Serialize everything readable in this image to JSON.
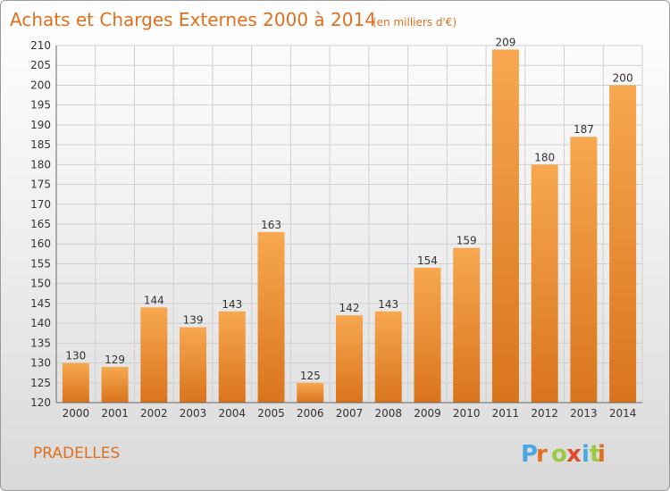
{
  "header": {
    "title": "Achats et Charges Externes 2000 à 2014",
    "subtitle": "(en milliers d'€)"
  },
  "footer": {
    "place": "PRADELLES",
    "brand_letters": [
      "P",
      "r",
      "o",
      "x",
      "i",
      "t",
      "i"
    ]
  },
  "colors": {
    "bar": "#f08a2c",
    "title": "#e0701e",
    "brand": [
      "#4aa7e0",
      "#e0701e",
      "#9bc93f",
      "#e24a2c",
      "#4aa7e0",
      "#9bc93f",
      "#e0701e"
    ]
  },
  "chart_data": {
    "type": "bar",
    "categories": [
      "2000",
      "2001",
      "2002",
      "2003",
      "2004",
      "2005",
      "2006",
      "2007",
      "2008",
      "2009",
      "2010",
      "2011",
      "2012",
      "2013",
      "2014"
    ],
    "values": [
      130,
      129,
      144,
      139,
      143,
      163,
      125,
      142,
      143,
      154,
      159,
      209,
      180,
      187,
      200
    ],
    "ylim": [
      120,
      210
    ],
    "yticks": [
      120,
      125,
      130,
      135,
      140,
      145,
      150,
      155,
      160,
      165,
      170,
      175,
      180,
      185,
      190,
      195,
      200,
      205,
      210
    ],
    "grid": true
  }
}
